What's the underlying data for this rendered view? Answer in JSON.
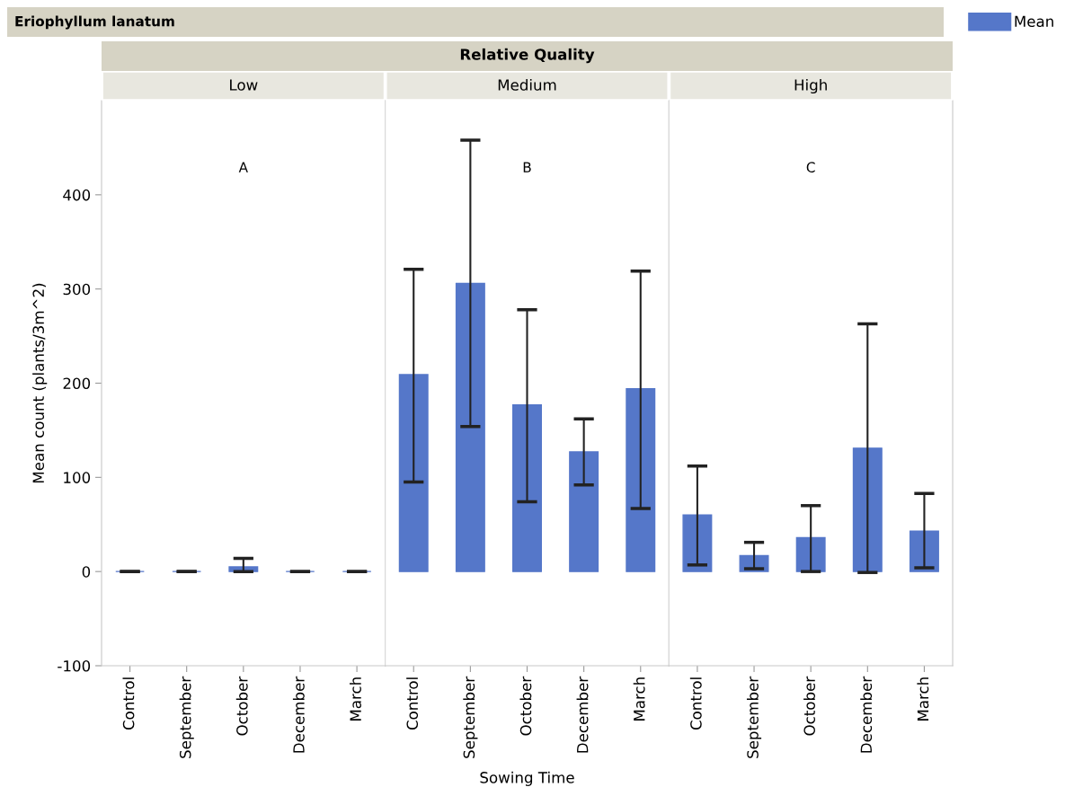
{
  "chart_data": [
    {
      "type": "bar",
      "title": "Low",
      "ylabel": "Mean count (plants/3m^2)",
      "categories": [
        "Control",
        "September",
        "October",
        "December",
        "March"
      ],
      "series": [
        {
          "color": "#5577c9",
          "values": [
            0,
            0,
            5,
            0,
            0
          ],
          "errors": [
            [
              0,
              0
            ],
            [
              0,
              0
            ],
            [
              0,
              14
            ],
            [
              0,
              0
            ],
            [
              0,
              0
            ]
          ]
        }
      ],
      "ylim": [
        -100,
        500
      ],
      "yticks": [
        -100,
        0,
        100,
        200,
        300,
        400
      ],
      "grid": false,
      "annotations": [
        "Eriophyllum lanatum",
        "Relative Quality",
        "A"
      ]
    },
    {
      "type": "bar",
      "title": "Medium",
      "xlabel": "Sowing Time",
      "categories": [
        "Control",
        "September",
        "October",
        "December",
        "March"
      ],
      "series": [
        {
          "color": "#5577c9",
          "values": [
            209,
            306,
            177,
            127,
            194
          ],
          "errors": [
            [
              95,
              321
            ],
            [
              154,
              458
            ],
            [
              74,
              278
            ],
            [
              92,
              162
            ],
            [
              67,
              319
            ]
          ]
        }
      ],
      "ylim": [
        -100,
        500
      ],
      "yticks": [
        -100,
        0,
        100,
        200,
        300,
        400
      ],
      "tick_labels": "x",
      "grid": false,
      "annotations": [
        "B"
      ]
    },
    {
      "type": "bar",
      "title": "High",
      "categories": [
        "Control",
        "September",
        "October",
        "December",
        "March"
      ],
      "series": [
        {
          "name": "Mean",
          "color": "#5577c9",
          "values": [
            60,
            17,
            36,
            131,
            43
          ],
          "errors": [
            [
              7,
              112
            ],
            [
              3,
              31
            ],
            [
              0,
              70
            ],
            [
              -1,
              263
            ],
            [
              4,
              83
            ]
          ]
        }
      ],
      "ylim": [
        -100,
        500
      ],
      "yticks": [
        -100,
        0,
        100,
        200,
        300,
        400
      ],
      "tick_labels": "x",
      "grid": false,
      "legend": "top right",
      "annotations": [
        "C"
      ]
    }
  ]
}
